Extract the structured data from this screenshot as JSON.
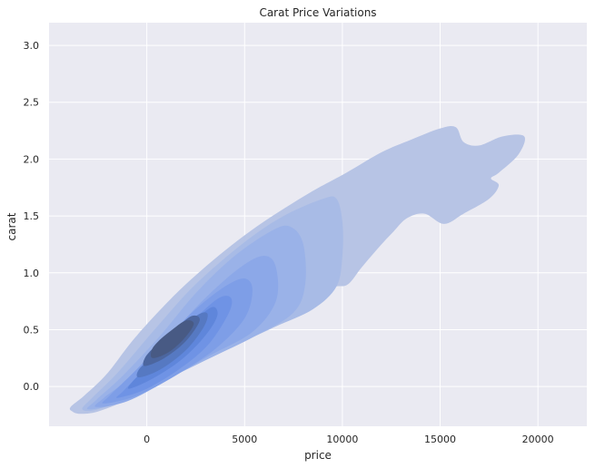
{
  "chart_data": {
    "type": "kde2d_filled_contour",
    "title": "Carat Price Variations",
    "xlabel": "price",
    "ylabel": "carat",
    "xlim": [
      -5000,
      22500
    ],
    "ylim": [
      -0.35,
      3.2
    ],
    "x_ticks": [
      0,
      5000,
      10000,
      15000,
      20000
    ],
    "y_ticks": [
      0.0,
      0.5,
      1.0,
      1.5,
      2.0,
      2.5,
      3.0
    ],
    "x_tick_labels": [
      "0",
      "5000",
      "10000",
      "15000",
      "20000"
    ],
    "y_tick_labels": [
      "0.0",
      "0.5",
      "1.0",
      "1.5",
      "2.0",
      "2.5",
      "3.0"
    ],
    "grid": true,
    "background": "#EAEAF2",
    "density_peak": {
      "price": 1000,
      "carat": 0.45
    },
    "levels": [
      {
        "level": 1,
        "color": "#B7C4E5",
        "polygon": [
          [
            -3800,
            -0.22
          ],
          [
            -3400,
            -0.24
          ],
          [
            -2500,
            -0.22
          ],
          [
            -1000,
            -0.12
          ],
          [
            500,
            0.0
          ],
          [
            2500,
            0.2
          ],
          [
            5000,
            0.42
          ],
          [
            7500,
            0.62
          ],
          [
            9000,
            0.75
          ],
          [
            9200,
            0.85
          ],
          [
            9700,
            0.88
          ],
          [
            10300,
            0.9
          ],
          [
            11000,
            1.05
          ],
          [
            12000,
            1.25
          ],
          [
            12600,
            1.36
          ],
          [
            13300,
            1.48
          ],
          [
            14200,
            1.52
          ],
          [
            15200,
            1.43
          ],
          [
            16200,
            1.52
          ],
          [
            17500,
            1.65
          ],
          [
            18000,
            1.77
          ],
          [
            17600,
            1.83
          ],
          [
            18000,
            1.88
          ],
          [
            19000,
            2.04
          ],
          [
            19300,
            2.2
          ],
          [
            18200,
            2.2
          ],
          [
            17000,
            2.12
          ],
          [
            16200,
            2.15
          ],
          [
            15800,
            2.28
          ],
          [
            15000,
            2.27
          ],
          [
            13500,
            2.17
          ],
          [
            12000,
            2.06
          ],
          [
            10200,
            1.88
          ],
          [
            8000,
            1.67
          ],
          [
            5000,
            1.33
          ],
          [
            2000,
            0.9
          ],
          [
            -500,
            0.45
          ],
          [
            -2000,
            0.12
          ],
          [
            -3200,
            -0.08
          ],
          [
            -3900,
            -0.18
          ]
        ]
      },
      {
        "level": 2,
        "color": "#A8BBE6",
        "polygon": [
          [
            -3300,
            -0.2
          ],
          [
            -2500,
            -0.2
          ],
          [
            -500,
            -0.05
          ],
          [
            1500,
            0.12
          ],
          [
            4000,
            0.32
          ],
          [
            6500,
            0.52
          ],
          [
            8500,
            0.68
          ],
          [
            9700,
            0.88
          ],
          [
            10000,
            1.15
          ],
          [
            10000,
            1.45
          ],
          [
            9700,
            1.65
          ],
          [
            9000,
            1.65
          ],
          [
            7000,
            1.5
          ],
          [
            5000,
            1.27
          ],
          [
            2500,
            0.9
          ],
          [
            500,
            0.52
          ],
          [
            -1500,
            0.12
          ],
          [
            -2800,
            -0.1
          ]
        ]
      },
      {
        "level": 3,
        "color": "#9AB2E8",
        "polygon": [
          [
            -3000,
            -0.2
          ],
          [
            -1500,
            -0.15
          ],
          [
            500,
            0.02
          ],
          [
            3000,
            0.23
          ],
          [
            5500,
            0.44
          ],
          [
            7500,
            0.65
          ],
          [
            8100,
            0.9
          ],
          [
            8000,
            1.25
          ],
          [
            7400,
            1.4
          ],
          [
            6500,
            1.38
          ],
          [
            4500,
            1.15
          ],
          [
            2500,
            0.82
          ],
          [
            700,
            0.45
          ],
          [
            -1200,
            0.1
          ],
          [
            -2600,
            -0.12
          ]
        ]
      },
      {
        "level": 4,
        "color": "#8CA8E8",
        "polygon": [
          [
            -2600,
            -0.18
          ],
          [
            -1000,
            -0.13
          ],
          [
            1000,
            0.05
          ],
          [
            3200,
            0.27
          ],
          [
            5400,
            0.48
          ],
          [
            6600,
            0.75
          ],
          [
            6600,
            1.05
          ],
          [
            6000,
            1.15
          ],
          [
            4800,
            1.05
          ],
          [
            3000,
            0.78
          ],
          [
            1200,
            0.45
          ],
          [
            -700,
            0.1
          ],
          [
            -2200,
            -0.1
          ]
        ]
      },
      {
        "level": 5,
        "color": "#7E9EE7",
        "polygon": [
          [
            -2200,
            -0.15
          ],
          [
            -500,
            -0.08
          ],
          [
            1500,
            0.1
          ],
          [
            3500,
            0.33
          ],
          [
            5000,
            0.6
          ],
          [
            5400,
            0.85
          ],
          [
            5000,
            0.95
          ],
          [
            4000,
            0.88
          ],
          [
            2500,
            0.68
          ],
          [
            1000,
            0.42
          ],
          [
            -700,
            0.12
          ],
          [
            -1900,
            -0.08
          ]
        ]
      },
      {
        "level": 6,
        "color": "#6F93E5",
        "polygon": [
          [
            -1500,
            -0.1
          ],
          [
            0,
            -0.02
          ],
          [
            1800,
            0.17
          ],
          [
            3200,
            0.38
          ],
          [
            4200,
            0.65
          ],
          [
            4300,
            0.78
          ],
          [
            3700,
            0.78
          ],
          [
            2600,
            0.62
          ],
          [
            1200,
            0.38
          ],
          [
            -300,
            0.12
          ],
          [
            -1200,
            -0.04
          ]
        ]
      },
      {
        "level": 7,
        "color": "#5F86DB",
        "polygon": [
          [
            -900,
            -0.02
          ],
          [
            300,
            0.07
          ],
          [
            1800,
            0.24
          ],
          [
            3000,
            0.45
          ],
          [
            3600,
            0.62
          ],
          [
            3400,
            0.7
          ],
          [
            2700,
            0.62
          ],
          [
            1500,
            0.42
          ],
          [
            200,
            0.2
          ],
          [
            -700,
            0.05
          ]
        ]
      },
      {
        "level": 8,
        "color": "#5679C2",
        "polygon": [
          [
            -400,
            0.08
          ],
          [
            700,
            0.15
          ],
          [
            2000,
            0.32
          ],
          [
            2900,
            0.52
          ],
          [
            3100,
            0.64
          ],
          [
            2600,
            0.63
          ],
          [
            1600,
            0.48
          ],
          [
            400,
            0.28
          ],
          [
            -400,
            0.15
          ]
        ]
      },
      {
        "level": 9,
        "color": "#4C669F",
        "polygon": [
          [
            -100,
            0.18
          ],
          [
            900,
            0.25
          ],
          [
            2000,
            0.4
          ],
          [
            2700,
            0.58
          ],
          [
            2300,
            0.62
          ],
          [
            1400,
            0.5
          ],
          [
            400,
            0.35
          ],
          [
            -100,
            0.25
          ]
        ]
      },
      {
        "level": 10,
        "color": "#485A84",
        "polygon": [
          [
            300,
            0.25
          ],
          [
            1100,
            0.3
          ],
          [
            1900,
            0.42
          ],
          [
            2400,
            0.55
          ],
          [
            2000,
            0.58
          ],
          [
            1300,
            0.5
          ],
          [
            600,
            0.4
          ],
          [
            250,
            0.32
          ]
        ]
      }
    ]
  }
}
